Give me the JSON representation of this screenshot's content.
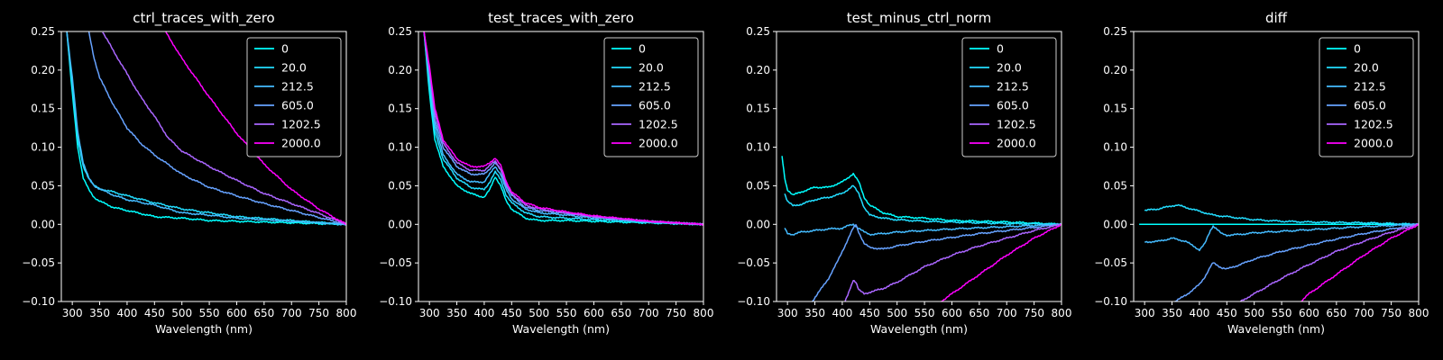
{
  "figure": {
    "background": "#000000",
    "foreground": "#ffffff"
  },
  "legend": {
    "labels": [
      "0",
      "20.0",
      "212.5",
      "605.0",
      "1202.5",
      "2000.0"
    ],
    "colors": [
      "#00ffff",
      "#22ddff",
      "#44bbff",
      "#66a2ff",
      "#aa66ff",
      "#ff00ff"
    ],
    "placement": "upper right"
  },
  "chart_data": [
    {
      "type": "line",
      "title": "ctrl_traces_with_zero",
      "xlabel": "Wavelength (nm)",
      "ylabel": "",
      "xlim": [
        280,
        800
      ],
      "ylim": [
        -0.1,
        0.25
      ],
      "xticks": [
        300,
        350,
        400,
        450,
        500,
        550,
        600,
        650,
        700,
        750,
        800
      ],
      "yticks": [
        -0.1,
        -0.05,
        0.0,
        0.05,
        0.1,
        0.15,
        0.2,
        0.25
      ],
      "series": [
        {
          "name": "0",
          "x": [
            290,
            300,
            310,
            320,
            330,
            340,
            350,
            375,
            400,
            450,
            500,
            550,
            600,
            700,
            800
          ],
          "y": [
            0.25,
            0.17,
            0.1,
            0.06,
            0.045,
            0.035,
            0.03,
            0.022,
            0.018,
            0.01,
            0.008,
            0.005,
            0.004,
            0.002,
            0.0
          ]
        },
        {
          "name": "20.0",
          "x": [
            290,
            300,
            310,
            320,
            330,
            340,
            350,
            375,
            400,
            450,
            500,
            550,
            600,
            700,
            800
          ],
          "y": [
            0.25,
            0.18,
            0.11,
            0.075,
            0.06,
            0.05,
            0.046,
            0.042,
            0.037,
            0.028,
            0.02,
            0.015,
            0.01,
            0.005,
            0.0
          ]
        },
        {
          "name": "212.5",
          "x": [
            290,
            300,
            310,
            320,
            330,
            340,
            350,
            375,
            400,
            450,
            500,
            550,
            600,
            700,
            800
          ],
          "y": [
            0.25,
            0.19,
            0.12,
            0.08,
            0.06,
            0.05,
            0.046,
            0.038,
            0.032,
            0.025,
            0.015,
            0.012,
            0.008,
            0.004,
            0.0
          ]
        },
        {
          "name": "605.0",
          "x": [
            330,
            340,
            350,
            375,
            400,
            425,
            450,
            500,
            550,
            600,
            650,
            700,
            750,
            800
          ],
          "y": [
            0.25,
            0.215,
            0.19,
            0.155,
            0.125,
            0.105,
            0.09,
            0.065,
            0.048,
            0.037,
            0.027,
            0.018,
            0.009,
            0.0
          ]
        },
        {
          "name": "1202.5",
          "x": [
            355,
            375,
            400,
            425,
            450,
            475,
            500,
            550,
            600,
            650,
            700,
            750,
            800
          ],
          "y": [
            0.25,
            0.225,
            0.195,
            0.165,
            0.14,
            0.112,
            0.095,
            0.075,
            0.057,
            0.04,
            0.027,
            0.014,
            0.0
          ]
        },
        {
          "name": "2000.0",
          "x": [
            470,
            500,
            525,
            550,
            600,
            650,
            700,
            750,
            800
          ],
          "y": [
            0.25,
            0.215,
            0.19,
            0.165,
            0.118,
            0.078,
            0.045,
            0.02,
            0.0
          ]
        }
      ]
    },
    {
      "type": "line",
      "title": "test_traces_with_zero",
      "xlabel": "Wavelength (nm)",
      "ylabel": "",
      "xlim": [
        280,
        800
      ],
      "ylim": [
        -0.1,
        0.25
      ],
      "xticks": [
        300,
        350,
        400,
        450,
        500,
        550,
        600,
        650,
        700,
        750,
        800
      ],
      "yticks": [
        -0.1,
        -0.05,
        0.0,
        0.05,
        0.1,
        0.15,
        0.2,
        0.25
      ],
      "series": [
        {
          "name": "0",
          "x": [
            290,
            300,
            310,
            325,
            350,
            375,
            400,
            410,
            420,
            430,
            440,
            450,
            475,
            500,
            550,
            600,
            700,
            800
          ],
          "y": [
            0.25,
            0.17,
            0.11,
            0.075,
            0.05,
            0.04,
            0.035,
            0.045,
            0.062,
            0.05,
            0.03,
            0.02,
            0.008,
            0.005,
            0.005,
            0.004,
            0.002,
            0.0
          ]
        },
        {
          "name": "20.0",
          "x": [
            290,
            300,
            310,
            325,
            350,
            375,
            400,
            410,
            420,
            430,
            440,
            450,
            475,
            500,
            550,
            600,
            700,
            800
          ],
          "y": [
            0.25,
            0.18,
            0.12,
            0.085,
            0.06,
            0.048,
            0.045,
            0.055,
            0.068,
            0.058,
            0.038,
            0.028,
            0.015,
            0.01,
            0.008,
            0.006,
            0.003,
            0.0
          ]
        },
        {
          "name": "212.5",
          "x": [
            290,
            300,
            310,
            325,
            350,
            375,
            400,
            410,
            420,
            430,
            440,
            450,
            475,
            500,
            550,
            600,
            700,
            800
          ],
          "y": [
            0.25,
            0.19,
            0.13,
            0.09,
            0.065,
            0.055,
            0.055,
            0.065,
            0.075,
            0.065,
            0.045,
            0.033,
            0.02,
            0.015,
            0.012,
            0.008,
            0.003,
            0.0
          ]
        },
        {
          "name": "605.0",
          "x": [
            290,
            300,
            310,
            325,
            350,
            375,
            400,
            410,
            420,
            430,
            440,
            450,
            475,
            500,
            550,
            600,
            700,
            800
          ],
          "y": [
            0.25,
            0.195,
            0.135,
            0.1,
            0.075,
            0.065,
            0.065,
            0.072,
            0.08,
            0.07,
            0.05,
            0.038,
            0.022,
            0.018,
            0.014,
            0.01,
            0.004,
            0.0
          ]
        },
        {
          "name": "1202.5",
          "x": [
            290,
            300,
            310,
            325,
            350,
            375,
            400,
            410,
            420,
            430,
            440,
            450,
            475,
            500,
            550,
            600,
            700,
            800
          ],
          "y": [
            0.25,
            0.2,
            0.145,
            0.105,
            0.08,
            0.07,
            0.07,
            0.076,
            0.082,
            0.072,
            0.052,
            0.04,
            0.025,
            0.02,
            0.015,
            0.01,
            0.004,
            0.0
          ]
        },
        {
          "name": "2000.0",
          "x": [
            290,
            300,
            310,
            325,
            350,
            375,
            400,
            410,
            420,
            430,
            440,
            450,
            475,
            500,
            550,
            600,
            700,
            800
          ],
          "y": [
            0.25,
            0.205,
            0.15,
            0.11,
            0.085,
            0.075,
            0.075,
            0.08,
            0.086,
            0.076,
            0.056,
            0.042,
            0.028,
            0.022,
            0.016,
            0.011,
            0.004,
            0.0
          ]
        }
      ]
    },
    {
      "type": "line",
      "title": "test_minus_ctrl_norm",
      "xlabel": "Wavelength (nm)",
      "ylabel": "",
      "xlim": [
        280,
        800
      ],
      "ylim": [
        -0.1,
        0.25
      ],
      "xticks": [
        300,
        350,
        400,
        450,
        500,
        550,
        600,
        650,
        700,
        750,
        800
      ],
      "yticks": [
        -0.1,
        -0.05,
        0.0,
        0.05,
        0.1,
        0.15,
        0.2,
        0.25
      ],
      "series": [
        {
          "name": "0",
          "x": [
            290,
            295,
            300,
            310,
            325,
            350,
            375,
            400,
            410,
            420,
            430,
            440,
            450,
            475,
            500,
            550,
            600,
            700,
            800
          ],
          "y": [
            0.088,
            0.06,
            0.045,
            0.038,
            0.042,
            0.048,
            0.048,
            0.055,
            0.06,
            0.066,
            0.055,
            0.035,
            0.025,
            0.015,
            0.01,
            0.008,
            0.005,
            0.003,
            0.0
          ]
        },
        {
          "name": "20.0",
          "x": [
            295,
            300,
            310,
            325,
            350,
            375,
            400,
            410,
            420,
            430,
            440,
            450,
            475,
            500,
            550,
            600,
            700,
            800
          ],
          "y": [
            0.04,
            0.03,
            0.024,
            0.026,
            0.032,
            0.035,
            0.04,
            0.045,
            0.05,
            0.04,
            0.022,
            0.012,
            0.008,
            0.006,
            0.004,
            0.003,
            0.001,
            0.0
          ]
        },
        {
          "name": "212.5",
          "x": [
            295,
            300,
            310,
            325,
            350,
            375,
            400,
            410,
            420,
            430,
            440,
            450,
            475,
            500,
            550,
            600,
            700,
            800
          ],
          "y": [
            -0.005,
            -0.012,
            -0.013,
            -0.01,
            -0.008,
            -0.006,
            -0.005,
            -0.002,
            0.0,
            -0.005,
            -0.01,
            -0.013,
            -0.012,
            -0.01,
            -0.008,
            -0.006,
            -0.003,
            0.0
          ]
        },
        {
          "name": "605.0",
          "x": [
            345,
            360,
            375,
            390,
            400,
            410,
            420,
            425,
            430,
            440,
            450,
            475,
            500,
            550,
            600,
            650,
            700,
            750,
            800
          ],
          "y": [
            -0.1,
            -0.085,
            -0.07,
            -0.05,
            -0.035,
            -0.02,
            -0.005,
            0.0,
            -0.01,
            -0.025,
            -0.03,
            -0.032,
            -0.028,
            -0.022,
            -0.017,
            -0.012,
            -0.008,
            -0.004,
            0.0
          ]
        },
        {
          "name": "1202.5",
          "x": [
            405,
            410,
            415,
            420,
            425,
            430,
            440,
            450,
            475,
            500,
            550,
            600,
            650,
            700,
            750,
            800
          ],
          "y": [
            -0.1,
            -0.092,
            -0.082,
            -0.072,
            -0.075,
            -0.085,
            -0.09,
            -0.088,
            -0.083,
            -0.075,
            -0.055,
            -0.04,
            -0.028,
            -0.018,
            -0.008,
            0.0
          ]
        },
        {
          "name": "2000.0",
          "x": [
            580,
            600,
            650,
            700,
            750,
            800
          ],
          "y": [
            -0.1,
            -0.09,
            -0.065,
            -0.04,
            -0.018,
            0.0
          ]
        }
      ]
    },
    {
      "type": "line",
      "title": "diff",
      "xlabel": "Wavelength (nm)",
      "ylabel": "",
      "xlim": [
        280,
        800
      ],
      "ylim": [
        -0.1,
        0.25
      ],
      "xticks": [
        300,
        350,
        400,
        450,
        500,
        550,
        600,
        650,
        700,
        750,
        800
      ],
      "yticks": [
        -0.1,
        -0.05,
        0.0,
        0.05,
        0.1,
        0.15,
        0.2,
        0.25
      ],
      "series": [
        {
          "name": "0",
          "x": [
            290,
            800
          ],
          "y": [
            0.0,
            0.0
          ]
        },
        {
          "name": "20.0",
          "x": [
            300,
            325,
            350,
            360,
            375,
            400,
            425,
            450,
            475,
            500,
            550,
            600,
            700,
            800
          ],
          "y": [
            0.018,
            0.02,
            0.024,
            0.025,
            0.022,
            0.017,
            0.012,
            0.01,
            0.008,
            0.006,
            0.004,
            0.003,
            0.002,
            0.0
          ]
        },
        {
          "name": "212.5",
          "x": [
            300,
            325,
            350,
            375,
            400,
            410,
            420,
            425,
            430,
            440,
            450,
            475,
            500,
            550,
            600,
            700,
            800
          ],
          "y": [
            -0.023,
            -0.022,
            -0.018,
            -0.022,
            -0.033,
            -0.025,
            -0.008,
            -0.002,
            -0.005,
            -0.012,
            -0.014,
            -0.013,
            -0.011,
            -0.009,
            -0.007,
            -0.003,
            0.0
          ]
        },
        {
          "name": "605.0",
          "x": [
            355,
            375,
            400,
            410,
            420,
            425,
            430,
            440,
            450,
            475,
            500,
            550,
            600,
            650,
            700,
            750,
            800
          ],
          "y": [
            -0.1,
            -0.092,
            -0.078,
            -0.068,
            -0.055,
            -0.05,
            -0.052,
            -0.056,
            -0.058,
            -0.052,
            -0.045,
            -0.035,
            -0.027,
            -0.019,
            -0.012,
            -0.006,
            0.0
          ]
        },
        {
          "name": "1202.5",
          "x": [
            475,
            500,
            525,
            550,
            600,
            650,
            700,
            750,
            800
          ],
          "y": [
            -0.1,
            -0.09,
            -0.08,
            -0.07,
            -0.052,
            -0.035,
            -0.022,
            -0.01,
            0.0
          ]
        },
        {
          "name": "2000.0",
          "x": [
            585,
            600,
            650,
            700,
            750,
            800
          ],
          "y": [
            -0.1,
            -0.09,
            -0.065,
            -0.04,
            -0.018,
            0.0
          ]
        }
      ]
    }
  ]
}
